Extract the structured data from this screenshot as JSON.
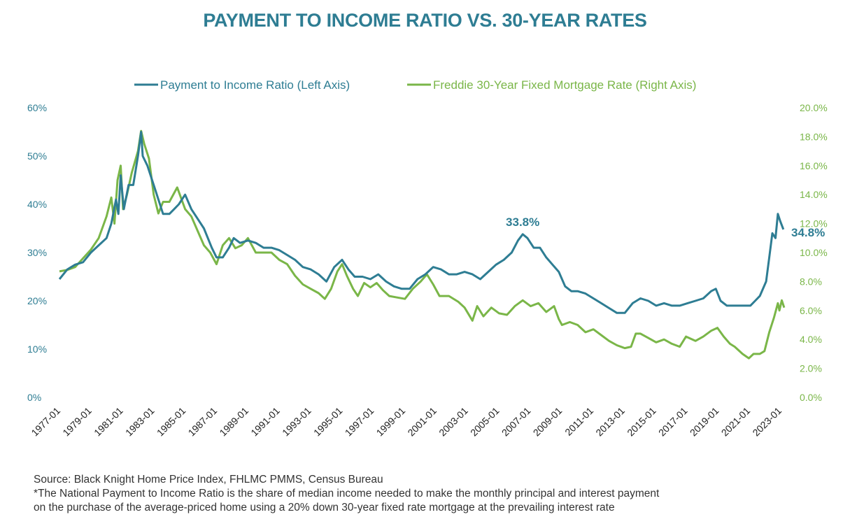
{
  "title": "PAYMENT TO INCOME RATIO VS. 30-YEAR RATES",
  "footnotes": [
    "Source: Black Knight Home Price Index, FHLMC PMMS, Census Bureau",
    "*The National Payment to Income Ratio is the share of median income needed to make the monthly principal and interest payment",
    "on the purchase of the average-priced home using a 20% down 30-year fixed rate mortgage at the prevailing interest rate"
  ],
  "colors": {
    "title": "#2e7d93",
    "pti": "#2e7d93",
    "rate": "#7ab648"
  },
  "chart_data": {
    "type": "line",
    "legend": {
      "position": "top",
      "entries": [
        "Payment to Income Ratio (Left Axis)",
        "Freddie 30-Year Fixed Mortgage Rate (Right Axis)"
      ]
    },
    "x_ticks": [
      "1977-01",
      "1979-01",
      "1981-01",
      "1983-01",
      "1985-01",
      "1987-01",
      "1989-01",
      "1991-01",
      "1993-01",
      "1995-01",
      "1997-01",
      "1999-01",
      "2001-01",
      "2003-01",
      "2005-01",
      "2007-01",
      "2009-01",
      "2011-01",
      "2013-01",
      "2015-01",
      "2017-01",
      "2019-01",
      "2021-01",
      "2023-01"
    ],
    "x_range": [
      1977.0,
      2023.2
    ],
    "left_axis": {
      "ticks": [
        "0%",
        "10%",
        "20%",
        "30%",
        "40%",
        "50%",
        "60%"
      ],
      "ylim": [
        0,
        60
      ]
    },
    "right_axis": {
      "ticks": [
        "0.0%",
        "2.0%",
        "4.0%",
        "6.0%",
        "8.0%",
        "10.0%",
        "12.0%",
        "14.0%",
        "16.0%",
        "18.0%",
        "20.0%"
      ],
      "ylim": [
        0,
        20
      ]
    },
    "annotations": [
      {
        "label": "33.8%",
        "x": 2006.5,
        "y": 33.8,
        "axis": "left"
      },
      {
        "label": "34.8%",
        "x": 2022.9,
        "y": 34.8,
        "axis": "left"
      }
    ],
    "series": [
      {
        "name": "Payment to Income Ratio (Left Axis)",
        "axis": "left",
        "points": [
          [
            1977.0,
            24.5
          ],
          [
            1977.5,
            26.5
          ],
          [
            1978.0,
            27.5
          ],
          [
            1978.5,
            28.0
          ],
          [
            1979.0,
            30
          ],
          [
            1979.5,
            31.5
          ],
          [
            1980.0,
            33
          ],
          [
            1980.3,
            36
          ],
          [
            1980.6,
            41
          ],
          [
            1980.75,
            38
          ],
          [
            1980.9,
            46
          ],
          [
            1981.1,
            39
          ],
          [
            1981.4,
            44
          ],
          [
            1981.7,
            44
          ],
          [
            1982.0,
            50
          ],
          [
            1982.2,
            55
          ],
          [
            1982.3,
            50
          ],
          [
            1982.6,
            48
          ],
          [
            1983.0,
            44
          ],
          [
            1983.3,
            41
          ],
          [
            1983.6,
            38
          ],
          [
            1984.0,
            38
          ],
          [
            1984.3,
            39
          ],
          [
            1984.6,
            40
          ],
          [
            1985.0,
            42
          ],
          [
            1985.4,
            39
          ],
          [
            1985.8,
            37
          ],
          [
            1986.2,
            35
          ],
          [
            1986.7,
            31
          ],
          [
            1987.0,
            29
          ],
          [
            1987.4,
            29
          ],
          [
            1987.8,
            31
          ],
          [
            1988.1,
            33
          ],
          [
            1988.5,
            32
          ],
          [
            1989.0,
            32.5
          ],
          [
            1989.5,
            32
          ],
          [
            1990.0,
            31
          ],
          [
            1990.5,
            31
          ],
          [
            1991.0,
            30.5
          ],
          [
            1991.5,
            29.5
          ],
          [
            1992.0,
            28.5
          ],
          [
            1992.5,
            27
          ],
          [
            1993.0,
            26.5
          ],
          [
            1993.5,
            25.5
          ],
          [
            1994.0,
            24
          ],
          [
            1994.5,
            27
          ],
          [
            1995.0,
            28.5
          ],
          [
            1995.4,
            26.5
          ],
          [
            1995.8,
            25
          ],
          [
            1996.3,
            25
          ],
          [
            1996.8,
            24.5
          ],
          [
            1997.3,
            25.5
          ],
          [
            1997.8,
            24
          ],
          [
            1998.3,
            23
          ],
          [
            1998.8,
            22.5
          ],
          [
            1999.3,
            22.5
          ],
          [
            1999.8,
            24.5
          ],
          [
            2000.3,
            25.5
          ],
          [
            2000.8,
            27
          ],
          [
            2001.3,
            26.5
          ],
          [
            2001.8,
            25.5
          ],
          [
            2002.3,
            25.5
          ],
          [
            2002.8,
            26
          ],
          [
            2003.3,
            25.5
          ],
          [
            2003.8,
            24.5
          ],
          [
            2004.3,
            26
          ],
          [
            2004.8,
            27.5
          ],
          [
            2005.3,
            28.5
          ],
          [
            2005.8,
            30
          ],
          [
            2006.2,
            32.5
          ],
          [
            2006.5,
            33.8
          ],
          [
            2006.8,
            33
          ],
          [
            2007.2,
            31
          ],
          [
            2007.6,
            31
          ],
          [
            2008.0,
            29
          ],
          [
            2008.4,
            27.5
          ],
          [
            2008.8,
            26
          ],
          [
            2009.2,
            23
          ],
          [
            2009.6,
            22
          ],
          [
            2010.0,
            22
          ],
          [
            2010.5,
            21.5
          ],
          [
            2011.0,
            20.5
          ],
          [
            2011.5,
            19.5
          ],
          [
            2012.0,
            18.5
          ],
          [
            2012.5,
            17.5
          ],
          [
            2013.0,
            17.5
          ],
          [
            2013.5,
            19.5
          ],
          [
            2014.0,
            20.5
          ],
          [
            2014.5,
            20
          ],
          [
            2015.0,
            19
          ],
          [
            2015.5,
            19.5
          ],
          [
            2016.0,
            19
          ],
          [
            2016.5,
            19
          ],
          [
            2017.0,
            19.5
          ],
          [
            2017.5,
            20
          ],
          [
            2018.0,
            20.5
          ],
          [
            2018.5,
            22
          ],
          [
            2018.8,
            22.5
          ],
          [
            2019.1,
            20
          ],
          [
            2019.5,
            19
          ],
          [
            2020.0,
            19
          ],
          [
            2020.5,
            19
          ],
          [
            2021.0,
            19
          ],
          [
            2021.3,
            20
          ],
          [
            2021.6,
            21
          ],
          [
            2022.0,
            24
          ],
          [
            2022.2,
            29
          ],
          [
            2022.4,
            34
          ],
          [
            2022.6,
            33
          ],
          [
            2022.75,
            38
          ],
          [
            2022.9,
            36.5
          ],
          [
            2023.1,
            34.8
          ]
        ]
      },
      {
        "name": "Freddie 30-Year Fixed Mortgage Rate (Right Axis)",
        "axis": "right",
        "points": [
          [
            1977.0,
            8.7
          ],
          [
            1977.5,
            8.8
          ],
          [
            1978.0,
            9.0
          ],
          [
            1978.5,
            9.6
          ],
          [
            1979.0,
            10.2
          ],
          [
            1979.5,
            11.0
          ],
          [
            1980.0,
            12.5
          ],
          [
            1980.3,
            13.8
          ],
          [
            1980.5,
            12.0
          ],
          [
            1980.7,
            15.0
          ],
          [
            1980.9,
            16.0
          ],
          [
            1981.05,
            13.0
          ],
          [
            1981.3,
            14.0
          ],
          [
            1981.6,
            15.5
          ],
          [
            1982.0,
            17.0
          ],
          [
            1982.2,
            18.4
          ],
          [
            1982.4,
            17.5
          ],
          [
            1982.7,
            16.5
          ],
          [
            1983.0,
            14.0
          ],
          [
            1983.3,
            12.7
          ],
          [
            1983.6,
            13.5
          ],
          [
            1984.0,
            13.5
          ],
          [
            1984.5,
            14.5
          ],
          [
            1985.0,
            13.0
          ],
          [
            1985.4,
            12.5
          ],
          [
            1985.8,
            11.5
          ],
          [
            1986.2,
            10.5
          ],
          [
            1986.6,
            10.0
          ],
          [
            1987.0,
            9.2
          ],
          [
            1987.4,
            10.5
          ],
          [
            1987.8,
            11.0
          ],
          [
            1988.2,
            10.3
          ],
          [
            1988.6,
            10.5
          ],
          [
            1989.0,
            11.0
          ],
          [
            1989.5,
            10.0
          ],
          [
            1990.0,
            10.0
          ],
          [
            1990.5,
            10.0
          ],
          [
            1991.0,
            9.5
          ],
          [
            1991.5,
            9.2
          ],
          [
            1992.0,
            8.4
          ],
          [
            1992.5,
            7.8
          ],
          [
            1993.0,
            7.5
          ],
          [
            1993.5,
            7.2
          ],
          [
            1993.9,
            6.8
          ],
          [
            1994.3,
            7.5
          ],
          [
            1994.7,
            8.7
          ],
          [
            1995.0,
            9.2
          ],
          [
            1995.3,
            8.4
          ],
          [
            1995.7,
            7.5
          ],
          [
            1996.0,
            7.0
          ],
          [
            1996.4,
            7.9
          ],
          [
            1996.8,
            7.6
          ],
          [
            1997.2,
            7.9
          ],
          [
            1997.6,
            7.4
          ],
          [
            1998.0,
            7.0
          ],
          [
            1998.5,
            6.9
          ],
          [
            1999.0,
            6.8
          ],
          [
            1999.5,
            7.5
          ],
          [
            2000.0,
            8.0
          ],
          [
            2000.4,
            8.5
          ],
          [
            2000.8,
            7.8
          ],
          [
            2001.2,
            7.0
          ],
          [
            2001.8,
            7.0
          ],
          [
            2002.4,
            6.6
          ],
          [
            2002.8,
            6.2
          ],
          [
            2003.3,
            5.3
          ],
          [
            2003.6,
            6.3
          ],
          [
            2004.0,
            5.6
          ],
          [
            2004.5,
            6.2
          ],
          [
            2005.0,
            5.8
          ],
          [
            2005.5,
            5.7
          ],
          [
            2006.0,
            6.3
          ],
          [
            2006.5,
            6.7
          ],
          [
            2007.0,
            6.3
          ],
          [
            2007.5,
            6.5
          ],
          [
            2008.0,
            5.9
          ],
          [
            2008.5,
            6.3
          ],
          [
            2008.8,
            5.4
          ],
          [
            2009.0,
            5.0
          ],
          [
            2009.5,
            5.2
          ],
          [
            2010.0,
            5.0
          ],
          [
            2010.5,
            4.5
          ],
          [
            2011.0,
            4.7
          ],
          [
            2011.5,
            4.3
          ],
          [
            2012.0,
            3.9
          ],
          [
            2012.5,
            3.6
          ],
          [
            2013.0,
            3.4
          ],
          [
            2013.4,
            3.5
          ],
          [
            2013.7,
            4.4
          ],
          [
            2014.0,
            4.4
          ],
          [
            2014.5,
            4.1
          ],
          [
            2015.0,
            3.8
          ],
          [
            2015.5,
            4.0
          ],
          [
            2016.0,
            3.7
          ],
          [
            2016.5,
            3.5
          ],
          [
            2016.9,
            4.2
          ],
          [
            2017.5,
            3.9
          ],
          [
            2018.0,
            4.2
          ],
          [
            2018.5,
            4.6
          ],
          [
            2018.9,
            4.8
          ],
          [
            2019.3,
            4.2
          ],
          [
            2019.7,
            3.7
          ],
          [
            2020.0,
            3.5
          ],
          [
            2020.5,
            3.0
          ],
          [
            2020.9,
            2.7
          ],
          [
            2021.2,
            3.0
          ],
          [
            2021.6,
            3.0
          ],
          [
            2021.9,
            3.2
          ],
          [
            2022.2,
            4.5
          ],
          [
            2022.5,
            5.5
          ],
          [
            2022.75,
            6.5
          ],
          [
            2022.85,
            6.0
          ],
          [
            2023.0,
            6.7
          ],
          [
            2023.15,
            6.2
          ]
        ]
      }
    ]
  }
}
